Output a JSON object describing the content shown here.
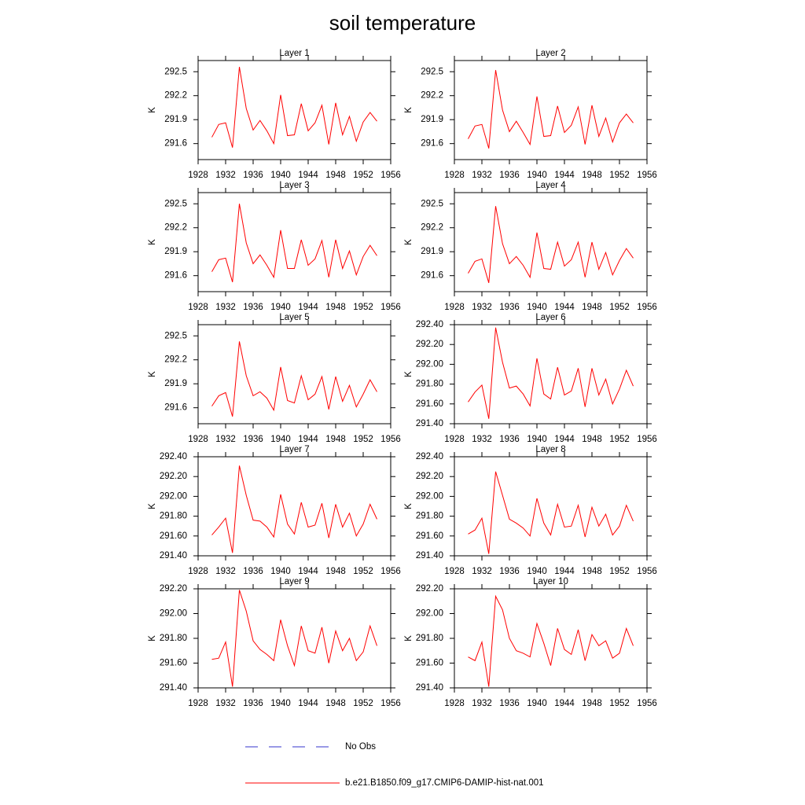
{
  "title": "soil temperature",
  "legend": [
    {
      "name": "No Obs",
      "color": "#3333cc",
      "dashed": true
    },
    {
      "name": "b.e21.B1850.f09_g17.CMIP6-DAMIP-hist-nat.001",
      "color": "#ff0000",
      "dashed": false
    }
  ],
  "chart_data": [
    {
      "type": "line",
      "title": "Layer 1",
      "ylabel": "K",
      "x": [
        1930,
        1931,
        1932,
        1933,
        1934,
        1935,
        1936,
        1937,
        1938,
        1939,
        1940,
        1941,
        1942,
        1943,
        1944,
        1945,
        1946,
        1947,
        1948,
        1949,
        1950,
        1951,
        1952,
        1953,
        1954
      ],
      "series": [
        {
          "color": "#ff0000",
          "values": [
            291.68,
            291.84,
            291.86,
            291.55,
            292.56,
            292.04,
            291.77,
            291.89,
            291.76,
            291.6,
            292.21,
            291.7,
            291.71,
            292.1,
            291.76,
            291.86,
            292.08,
            291.59,
            292.11,
            291.71,
            291.94,
            291.63,
            291.87,
            291.99,
            291.88
          ]
        }
      ],
      "xlim": [
        1928,
        1956
      ],
      "xticks": [
        1928,
        1932,
        1936,
        1940,
        1944,
        1948,
        1952,
        1956
      ],
      "ylim": [
        291.4,
        292.64
      ],
      "yticks": [
        291.6,
        291.9,
        292.2,
        292.5
      ]
    },
    {
      "type": "line",
      "title": "Layer 2",
      "ylabel": "K",
      "x": [
        1930,
        1931,
        1932,
        1933,
        1934,
        1935,
        1936,
        1937,
        1938,
        1939,
        1940,
        1941,
        1942,
        1943,
        1944,
        1945,
        1946,
        1947,
        1948,
        1949,
        1950,
        1951,
        1952,
        1953,
        1954
      ],
      "series": [
        {
          "color": "#ff0000",
          "values": [
            291.66,
            291.82,
            291.84,
            291.54,
            292.52,
            292.02,
            291.75,
            291.88,
            291.74,
            291.59,
            292.19,
            291.69,
            291.7,
            292.07,
            291.74,
            291.83,
            292.06,
            291.59,
            292.08,
            291.69,
            291.92,
            291.62,
            291.86,
            291.97,
            291.86
          ]
        }
      ],
      "xlim": [
        1928,
        1956
      ],
      "xticks": [
        1928,
        1932,
        1936,
        1940,
        1944,
        1948,
        1952,
        1956
      ],
      "ylim": [
        291.4,
        292.64
      ],
      "yticks": [
        291.6,
        291.9,
        292.2,
        292.5
      ]
    },
    {
      "type": "line",
      "title": "Layer 3",
      "ylabel": "K",
      "x": [
        1930,
        1931,
        1932,
        1933,
        1934,
        1935,
        1936,
        1937,
        1938,
        1939,
        1940,
        1941,
        1942,
        1943,
        1944,
        1945,
        1946,
        1947,
        1948,
        1949,
        1950,
        1951,
        1952,
        1953,
        1954
      ],
      "series": [
        {
          "color": "#ff0000",
          "values": [
            291.65,
            291.8,
            291.82,
            291.52,
            292.5,
            292.01,
            291.75,
            291.86,
            291.73,
            291.58,
            292.17,
            291.69,
            291.69,
            292.05,
            291.73,
            291.81,
            292.04,
            291.58,
            292.05,
            291.69,
            291.91,
            291.61,
            291.84,
            291.98,
            291.85
          ]
        }
      ],
      "xlim": [
        1928,
        1956
      ],
      "xticks": [
        1928,
        1932,
        1936,
        1940,
        1944,
        1948,
        1952,
        1956
      ],
      "ylim": [
        291.4,
        292.64
      ],
      "yticks": [
        291.6,
        291.9,
        292.2,
        292.5
      ]
    },
    {
      "type": "line",
      "title": "Layer 4",
      "ylabel": "K",
      "x": [
        1930,
        1931,
        1932,
        1933,
        1934,
        1935,
        1936,
        1937,
        1938,
        1939,
        1940,
        1941,
        1942,
        1943,
        1944,
        1945,
        1946,
        1947,
        1948,
        1949,
        1950,
        1951,
        1952,
        1953,
        1954
      ],
      "series": [
        {
          "color": "#ff0000",
          "values": [
            291.63,
            291.78,
            291.81,
            291.51,
            292.47,
            292.0,
            291.75,
            291.84,
            291.73,
            291.58,
            292.14,
            291.69,
            291.68,
            292.02,
            291.72,
            291.8,
            292.02,
            291.58,
            292.02,
            291.68,
            291.89,
            291.61,
            291.79,
            291.94,
            291.82
          ]
        }
      ],
      "xlim": [
        1928,
        1956
      ],
      "xticks": [
        1928,
        1932,
        1936,
        1940,
        1944,
        1948,
        1952,
        1956
      ],
      "ylim": [
        291.4,
        292.64
      ],
      "yticks": [
        291.6,
        291.9,
        292.2,
        292.5
      ]
    },
    {
      "type": "line",
      "title": "Layer 5",
      "ylabel": "K",
      "x": [
        1930,
        1931,
        1932,
        1933,
        1934,
        1935,
        1936,
        1937,
        1938,
        1939,
        1940,
        1941,
        1942,
        1943,
        1944,
        1945,
        1946,
        1947,
        1948,
        1949,
        1950,
        1951,
        1952,
        1953,
        1954
      ],
      "series": [
        {
          "color": "#ff0000",
          "values": [
            291.62,
            291.75,
            291.79,
            291.49,
            292.43,
            292.0,
            291.75,
            291.8,
            291.72,
            291.57,
            292.11,
            291.69,
            291.66,
            292.0,
            291.7,
            291.77,
            291.99,
            291.58,
            291.99,
            291.68,
            291.88,
            291.61,
            291.77,
            291.95,
            291.8
          ]
        }
      ],
      "xlim": [
        1928,
        1956
      ],
      "xticks": [
        1928,
        1932,
        1936,
        1940,
        1944,
        1948,
        1952,
        1956
      ],
      "ylim": [
        291.4,
        292.64
      ],
      "yticks": [
        291.6,
        291.9,
        292.2,
        292.5
      ]
    },
    {
      "type": "line",
      "title": "Layer 6",
      "ylabel": "K",
      "x": [
        1930,
        1931,
        1932,
        1933,
        1934,
        1935,
        1936,
        1937,
        1938,
        1939,
        1940,
        1941,
        1942,
        1943,
        1944,
        1945,
        1946,
        1947,
        1948,
        1949,
        1950,
        1951,
        1952,
        1953,
        1954
      ],
      "series": [
        {
          "color": "#ff0000",
          "values": [
            291.62,
            291.72,
            291.79,
            291.45,
            292.37,
            292.02,
            291.76,
            291.78,
            291.7,
            291.58,
            292.06,
            291.7,
            291.65,
            291.97,
            291.69,
            291.73,
            291.96,
            291.57,
            291.96,
            291.69,
            291.85,
            291.6,
            291.75,
            291.94,
            291.78
          ]
        }
      ],
      "xlim": [
        1928,
        1956
      ],
      "xticks": [
        1928,
        1932,
        1936,
        1940,
        1944,
        1948,
        1952,
        1956
      ],
      "ylim": [
        291.4,
        292.4
      ],
      "yticks": [
        {
          "value": 291.4,
          "label": "291.40"
        },
        {
          "value": 291.6,
          "label": "291.60"
        },
        {
          "value": 291.8,
          "label": "291.80"
        },
        {
          "value": 292.0,
          "label": "292.00"
        },
        {
          "value": 292.2,
          "label": "292.20"
        },
        {
          "value": 292.4,
          "label": "292.40"
        }
      ]
    },
    {
      "type": "line",
      "title": "Layer 7",
      "ylabel": "K",
      "x": [
        1930,
        1931,
        1932,
        1933,
        1934,
        1935,
        1936,
        1937,
        1938,
        1939,
        1940,
        1941,
        1942,
        1943,
        1944,
        1945,
        1946,
        1947,
        1948,
        1949,
        1950,
        1951,
        1952,
        1953,
        1954
      ],
      "series": [
        {
          "color": "#ff0000",
          "values": [
            291.61,
            291.69,
            291.78,
            291.43,
            292.31,
            292.01,
            291.76,
            291.75,
            291.69,
            291.59,
            292.02,
            291.72,
            291.62,
            291.94,
            291.69,
            291.71,
            291.93,
            291.58,
            291.92,
            291.69,
            291.83,
            291.6,
            291.72,
            291.92,
            291.77
          ]
        }
      ],
      "xlim": [
        1928,
        1956
      ],
      "xticks": [
        1928,
        1932,
        1936,
        1940,
        1944,
        1948,
        1952,
        1956
      ],
      "ylim": [
        291.4,
        292.4
      ],
      "yticks": [
        {
          "value": 291.4,
          "label": "291.40"
        },
        {
          "value": 291.6,
          "label": "291.60"
        },
        {
          "value": 291.8,
          "label": "291.80"
        },
        {
          "value": 292.0,
          "label": "292.00"
        },
        {
          "value": 292.2,
          "label": "292.20"
        },
        {
          "value": 292.4,
          "label": "292.40"
        }
      ]
    },
    {
      "type": "line",
      "title": "Layer 8",
      "ylabel": "K",
      "x": [
        1930,
        1931,
        1932,
        1933,
        1934,
        1935,
        1936,
        1937,
        1938,
        1939,
        1940,
        1941,
        1942,
        1943,
        1944,
        1945,
        1946,
        1947,
        1948,
        1949,
        1950,
        1951,
        1952,
        1953,
        1954
      ],
      "series": [
        {
          "color": "#ff0000",
          "values": [
            291.62,
            291.66,
            291.78,
            291.42,
            292.25,
            292.01,
            291.77,
            291.73,
            291.68,
            291.6,
            291.98,
            291.73,
            291.61,
            291.92,
            291.69,
            291.7,
            291.91,
            291.59,
            291.89,
            291.7,
            291.82,
            291.61,
            291.7,
            291.91,
            291.75
          ]
        }
      ],
      "xlim": [
        1928,
        1956
      ],
      "xticks": [
        1928,
        1932,
        1936,
        1940,
        1944,
        1948,
        1952,
        1956
      ],
      "ylim": [
        291.4,
        292.4
      ],
      "yticks": [
        {
          "value": 291.4,
          "label": "291.40"
        },
        {
          "value": 291.6,
          "label": "291.60"
        },
        {
          "value": 291.8,
          "label": "291.80"
        },
        {
          "value": 292.0,
          "label": "292.00"
        },
        {
          "value": 292.2,
          "label": "292.20"
        },
        {
          "value": 292.4,
          "label": "292.40"
        }
      ]
    },
    {
      "type": "line",
      "title": "Layer 9",
      "ylabel": "K",
      "x": [
        1930,
        1931,
        1932,
        1933,
        1934,
        1935,
        1936,
        1937,
        1938,
        1939,
        1940,
        1941,
        1942,
        1943,
        1944,
        1945,
        1946,
        1947,
        1948,
        1949,
        1950,
        1951,
        1952,
        1953,
        1954
      ],
      "series": [
        {
          "color": "#ff0000",
          "values": [
            291.63,
            291.64,
            291.77,
            291.41,
            292.19,
            292.02,
            291.78,
            291.71,
            291.67,
            291.62,
            291.95,
            291.74,
            291.58,
            291.9,
            291.7,
            291.68,
            291.89,
            291.6,
            291.86,
            291.7,
            291.8,
            291.62,
            291.69,
            291.9,
            291.74
          ]
        }
      ],
      "xlim": [
        1928,
        1956
      ],
      "xticks": [
        1928,
        1932,
        1936,
        1940,
        1944,
        1948,
        1952,
        1956
      ],
      "ylim": [
        291.4,
        292.2
      ],
      "yticks": [
        {
          "value": 291.4,
          "label": "291.40"
        },
        {
          "value": 291.6,
          "label": "291.60"
        },
        {
          "value": 291.8,
          "label": "291.80"
        },
        {
          "value": 292.0,
          "label": "292.00"
        },
        {
          "value": 292.2,
          "label": "292.20"
        }
      ]
    },
    {
      "type": "line",
      "title": "Layer 10",
      "ylabel": "K",
      "x": [
        1930,
        1931,
        1932,
        1933,
        1934,
        1935,
        1936,
        1937,
        1938,
        1939,
        1940,
        1941,
        1942,
        1943,
        1944,
        1945,
        1946,
        1947,
        1948,
        1949,
        1950,
        1951,
        1952,
        1953,
        1954
      ],
      "series": [
        {
          "color": "#ff0000",
          "values": [
            291.65,
            291.62,
            291.77,
            291.41,
            292.14,
            292.03,
            291.8,
            291.7,
            291.68,
            291.65,
            291.92,
            291.76,
            291.58,
            291.88,
            291.71,
            291.67,
            291.87,
            291.62,
            291.83,
            291.74,
            291.78,
            291.64,
            291.68,
            291.88,
            291.74
          ]
        }
      ],
      "xlim": [
        1928,
        1956
      ],
      "xticks": [
        1928,
        1932,
        1936,
        1940,
        1944,
        1948,
        1952,
        1956
      ],
      "ylim": [
        291.4,
        292.2
      ],
      "yticks": [
        {
          "value": 291.4,
          "label": "291.40"
        },
        {
          "value": 291.6,
          "label": "291.60"
        },
        {
          "value": 291.8,
          "label": "291.80"
        },
        {
          "value": 292.0,
          "label": "292.00"
        },
        {
          "value": 292.2,
          "label": "292.20"
        }
      ]
    }
  ]
}
